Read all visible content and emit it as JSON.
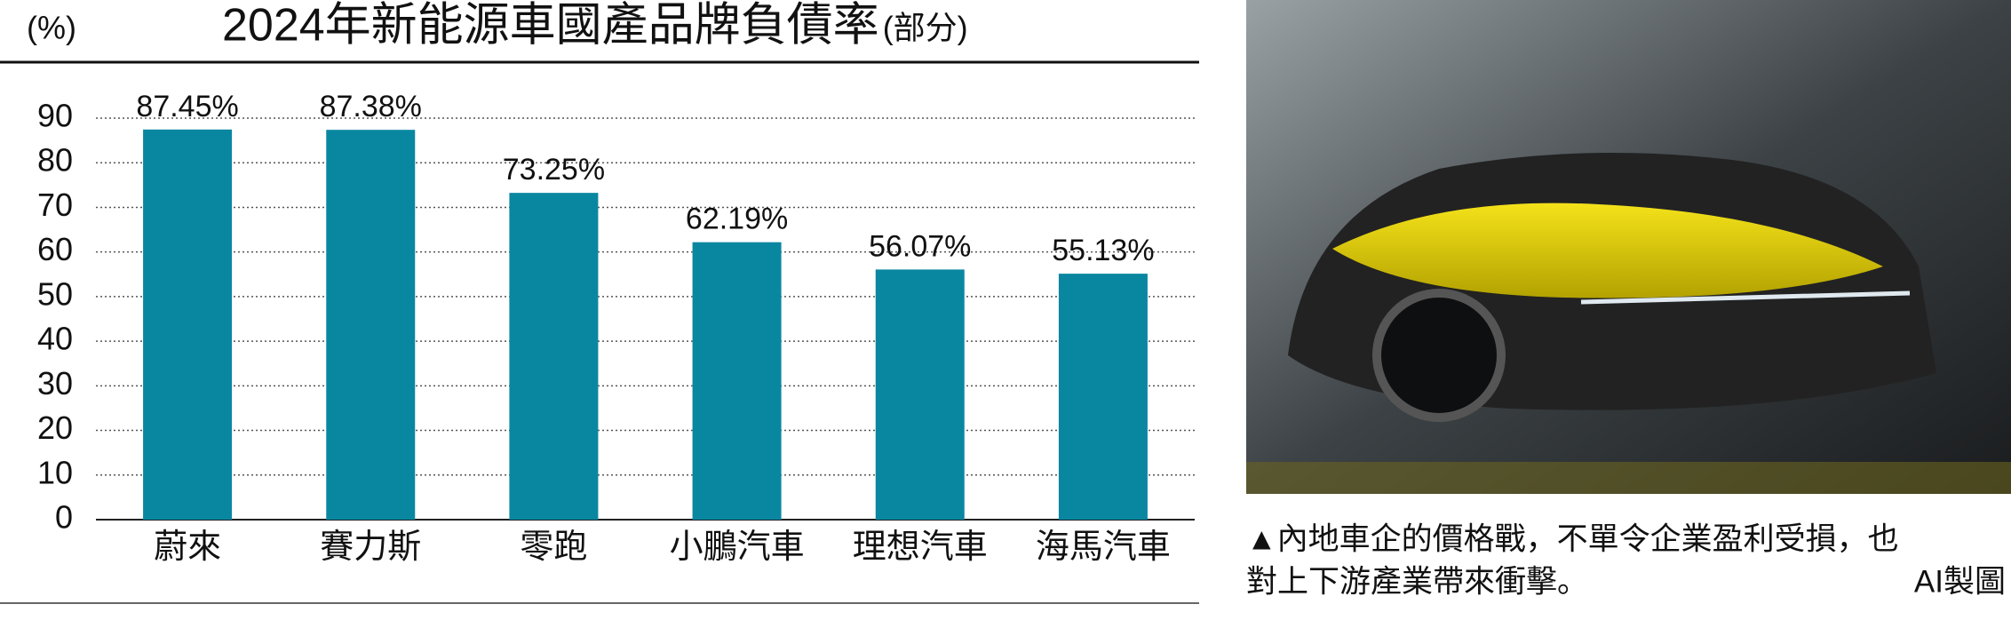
{
  "chart_data": {
    "type": "bar",
    "title": "2024年新能源車國產品牌負債率",
    "subtitle": "(部分)",
    "y_label": "(%)",
    "categories": [
      "蔚來",
      "賽力斯",
      "零跑",
      "小鵬汽車",
      "理想汽車",
      "海馬汽車"
    ],
    "values": [
      87.45,
      87.38,
      73.25,
      62.19,
      56.07,
      55.13
    ],
    "value_labels": [
      "87.45%",
      "87.38%",
      "73.25%",
      "62.19%",
      "56.07%",
      "55.13%"
    ],
    "color": "#0a87a0",
    "ylim": [
      0,
      90
    ],
    "yticks": [
      0,
      10,
      20,
      30,
      40,
      50,
      60,
      70,
      80,
      90
    ],
    "grid": true
  },
  "caption": {
    "text_line1": "▲內地車企的價格戰，不單令企業盈利受損，也",
    "text_line2": "對上下游產業帶來衝擊。",
    "credit": "AI製圖"
  }
}
